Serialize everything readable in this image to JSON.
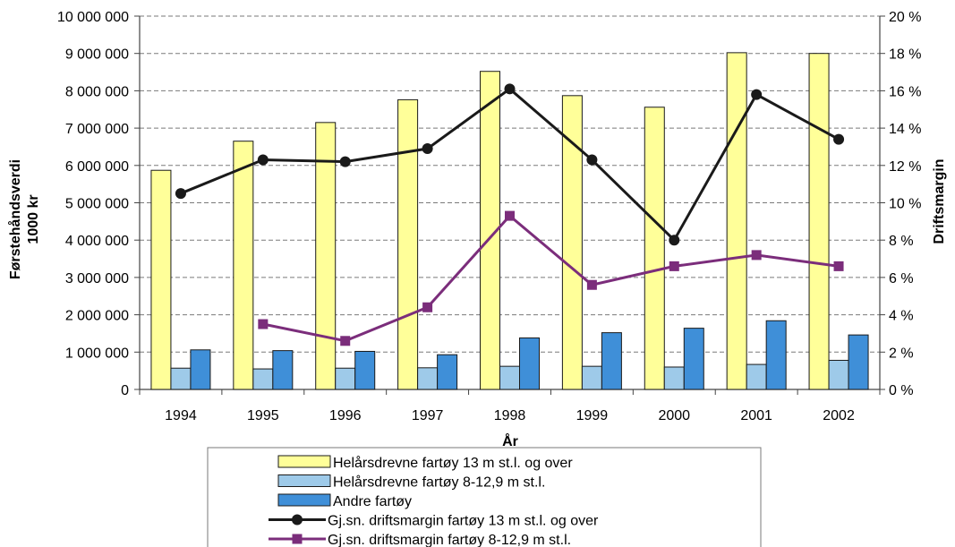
{
  "chart_data": {
    "type": "bar",
    "categories": [
      "1994",
      "1995",
      "1996",
      "1997",
      "1998",
      "1999",
      "2000",
      "2001",
      "2002"
    ],
    "xlabel": "År",
    "ylabel": "Førstehåndsverdi\n1000 kr",
    "ylabel2": "Driftsmargin",
    "ylim": [
      0,
      10000000
    ],
    "ylim2": [
      0,
      20
    ],
    "yticks": [
      "0",
      "1 000 000",
      "2 000 000",
      "3 000 000",
      "4 000 000",
      "5 000 000",
      "6 000 000",
      "7 000 000",
      "8 000 000",
      "9 000 000",
      "10 000 000"
    ],
    "yticks2": [
      "0 %",
      "2 %",
      "4 %",
      "6 %",
      "8 %",
      "10 %",
      "12 %",
      "14 %",
      "16 %",
      "18 %",
      "20 %"
    ],
    "grid": true,
    "legend_position": "bottom",
    "series": [
      {
        "name": "Helårsdrevne fartøy 13 m st.l. og over",
        "kind": "bar",
        "axis": "left",
        "color": "#ffff99",
        "values": [
          5870000,
          6650000,
          7150000,
          7760000,
          8520000,
          7870000,
          7560000,
          9020000,
          9000000
        ]
      },
      {
        "name": "Helårsdrevne fartøy 8-12,9 m st.l.",
        "kind": "bar",
        "axis": "left",
        "color": "#9ecae9",
        "values": [
          570000,
          550000,
          570000,
          580000,
          620000,
          620000,
          600000,
          670000,
          780000
        ]
      },
      {
        "name": "Andre fartøy",
        "kind": "bar",
        "axis": "left",
        "color": "#3f8fd8",
        "values": [
          1060000,
          1040000,
          1020000,
          930000,
          1380000,
          1520000,
          1640000,
          1840000,
          1460000
        ]
      },
      {
        "name": "Gj.sn. driftsmargin fartøy 13 m st.l. og over",
        "kind": "line",
        "axis": "right",
        "color": "#1a1a1a",
        "marker": "circle",
        "values": [
          10.5,
          12.3,
          12.2,
          12.9,
          16.1,
          12.3,
          8.0,
          15.8,
          13.4
        ]
      },
      {
        "name": "Gj.sn. driftsmargin fartøy 8-12,9 m st.l.",
        "kind": "line",
        "axis": "right",
        "color": "#7b2d7b",
        "marker": "square",
        "values": [
          null,
          3.5,
          2.6,
          4.4,
          9.3,
          5.6,
          6.6,
          7.2,
          6.6
        ]
      }
    ]
  }
}
